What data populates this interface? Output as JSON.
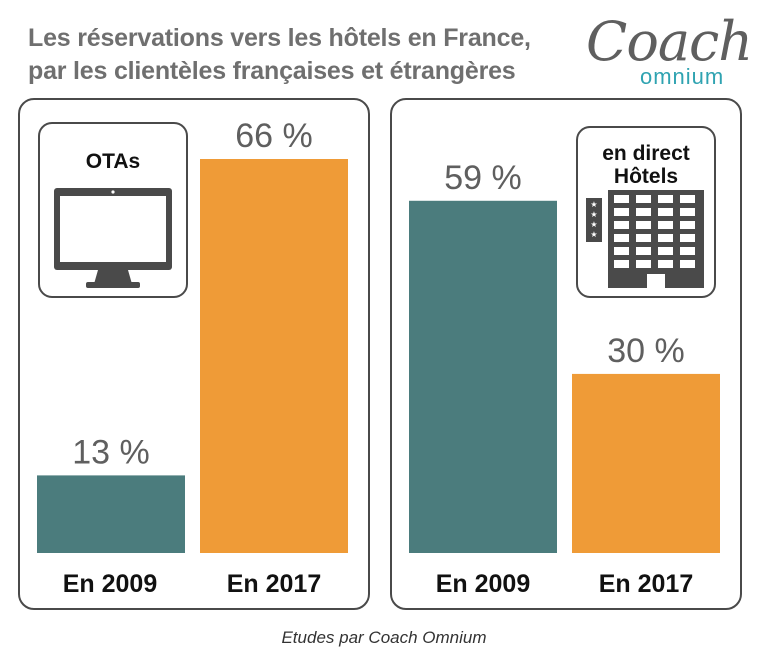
{
  "title_line1": "Les réservations vers les hôtels en France,",
  "title_line2": "par les clientèles françaises et étrangères",
  "logo": {
    "coach": "Coach",
    "omnium": "omnium"
  },
  "footer": "Etudes par Coach Omnium",
  "colors": {
    "teal": "#4b7c7d",
    "orange": "#ef9b37",
    "text_gray": "#5f5f5f",
    "logo_teal": "#2fa3b1"
  },
  "chart_data": [
    {
      "type": "bar",
      "title": "OTAs",
      "categories": [
        "En 2009",
        "En 2017"
      ],
      "values": [
        13,
        66
      ],
      "value_labels": [
        "13 %",
        "66 %"
      ],
      "unit": "%",
      "ylim": [
        0,
        66
      ],
      "icon": "computer-monitor-icon"
    },
    {
      "type": "bar",
      "title": "en direct Hôtels",
      "title_lines": [
        "en direct",
        "Hôtels"
      ],
      "categories": [
        "En 2009",
        "En 2017"
      ],
      "values": [
        59,
        30
      ],
      "value_labels": [
        "59 %",
        "30 %"
      ],
      "unit": "%",
      "ylim": [
        0,
        66
      ],
      "icon": "hotel-building-icon"
    }
  ]
}
